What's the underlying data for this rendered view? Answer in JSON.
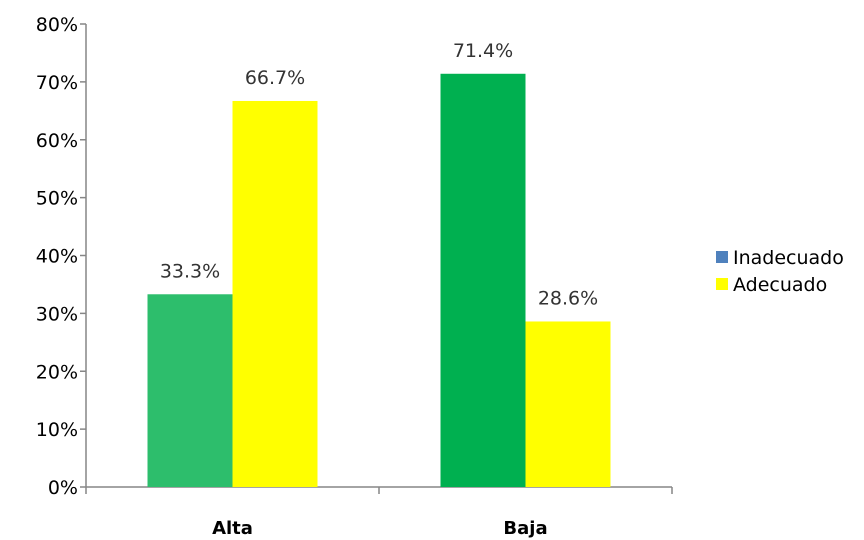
{
  "chart_data": {
    "type": "bar",
    "categories": [
      "Alta",
      "Baja"
    ],
    "series": [
      {
        "name": "Inadecuado",
        "values": [
          33.3,
          71.4
        ],
        "legend_color": "#4F81BD",
        "bar_colors": [
          "#2DBE6C",
          "#00B050"
        ]
      },
      {
        "name": "Adecuado",
        "values": [
          66.7,
          28.6
        ],
        "legend_color": "#FFFF00",
        "bar_colors": [
          "#FFFF00",
          "#FFFF00"
        ]
      }
    ],
    "data_labels": [
      [
        "33.3%",
        "71.4%"
      ],
      [
        "66.7%",
        "28.6%"
      ]
    ],
    "yticks": [
      "0%",
      "10%",
      "20%",
      "30%",
      "40%",
      "50%",
      "60%",
      "70%",
      "80%"
    ],
    "ylim": [
      0,
      80
    ],
    "title": "",
    "xlabel": "",
    "ylabel": "",
    "grid": false,
    "legend_position": "right"
  }
}
